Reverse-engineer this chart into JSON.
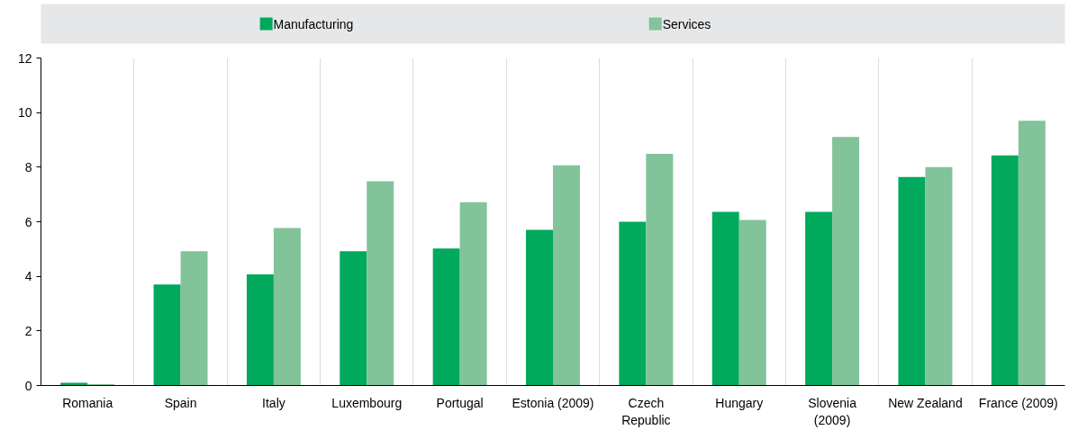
{
  "chart_data": {
    "type": "bar",
    "categories": [
      "Romania",
      "Spain",
      "Italy",
      "Luxembourg",
      "Portugal",
      "Estonia (2009)",
      "Czech\nRepublic",
      "Hungary",
      "Slovenia\n(2009)",
      "New Zealand",
      "France (2009)"
    ],
    "series": [
      {
        "name": "Manufacturing",
        "color": "#00a95c",
        "values": [
          0.1,
          3.7,
          4.07,
          4.92,
          5.02,
          5.7,
          6.0,
          6.36,
          6.36,
          7.64,
          8.43
        ]
      },
      {
        "name": "Services",
        "color": "#82c39a",
        "values": [
          0.05,
          4.92,
          5.77,
          7.48,
          6.72,
          8.07,
          8.49,
          6.07,
          9.11,
          8.0,
          9.7
        ]
      }
    ],
    "ylim": [
      0,
      12
    ],
    "yticks": [
      0,
      2,
      4,
      6,
      8,
      10,
      12
    ],
    "grid": "x",
    "legend": "top"
  }
}
